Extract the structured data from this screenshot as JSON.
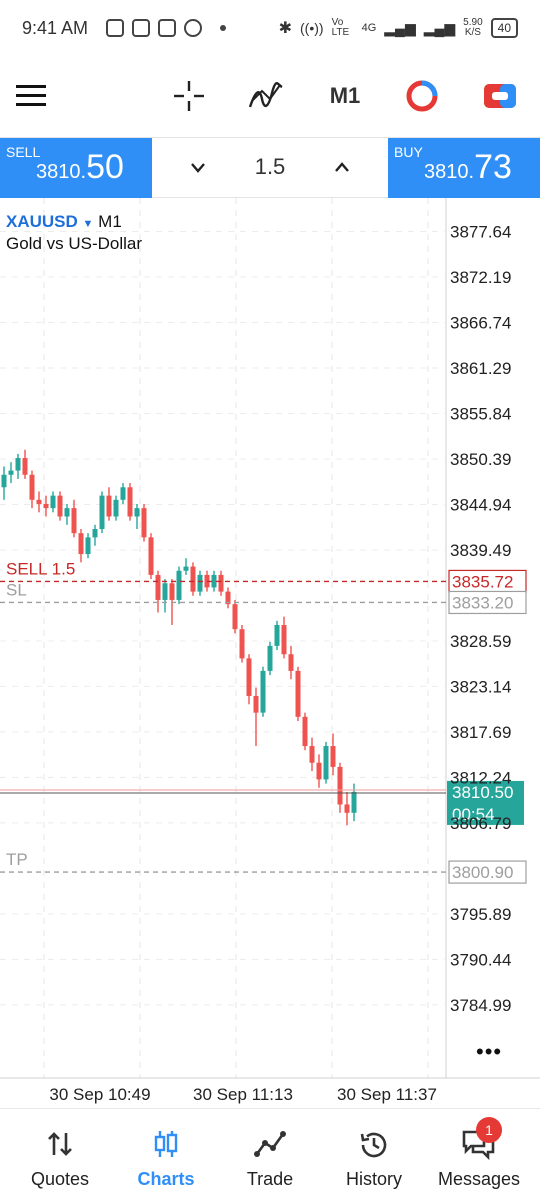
{
  "status": {
    "time": "9:41 AM",
    "net_speed": "5.90",
    "net_unit": "K/S",
    "battery": "40",
    "signal_label": "Vo LTE",
    "net_type": "4G"
  },
  "toolbar": {
    "menu_icon": "hamburger-icon",
    "crosshair_icon": "crosshair-icon",
    "indicators_icon": "indicators-icon",
    "timeframe": "M1",
    "theme_icon": "color-theme-icon",
    "trade_icon": "one-click-trade-icon"
  },
  "trade": {
    "sell_label": "SELL",
    "sell_price_main": "3810.",
    "sell_price_big": "50",
    "lot": "1.5",
    "buy_label": "BUY",
    "buy_price_main": "3810.",
    "buy_price_big": "73"
  },
  "chart_header": {
    "symbol": "XAUUSD",
    "timeframe": "M1",
    "description": "Gold vs US-Dollar"
  },
  "chart_data": {
    "type": "candlestick",
    "y_ticks": [
      "3877.64",
      "3872.19",
      "3866.74",
      "3861.29",
      "3855.84",
      "3850.39",
      "3844.94",
      "3839.49",
      "3835.72",
      "3833.20",
      "3828.59",
      "3823.14",
      "3817.69",
      "3812.24",
      "3806.79",
      "3800.90",
      "3795.89",
      "3790.44",
      "3784.99"
    ],
    "ylim": [
      3781.5,
      3879.5
    ],
    "x_ticks": [
      "30 Sep 10:49",
      "30 Sep 11:13",
      "30 Sep 11:37"
    ],
    "grid": true,
    "up_color": "#26a69a",
    "down_color": "#ef5350",
    "order_lines": [
      {
        "label": "SELL 1.5",
        "price": 3835.72,
        "price_label": "3835.72",
        "color": "#c62828"
      },
      {
        "label": "SL",
        "price": 3833.2,
        "price_label": "3833.20",
        "color": "#9e9e9e"
      },
      {
        "label": "TP",
        "price": 3800.9,
        "price_label": "3800.90",
        "color": "#9e9e9e"
      }
    ],
    "current": {
      "price": 3810.5,
      "price_label": "3810.50",
      "countdown": "00:54",
      "color": "#26a69a"
    },
    "candles": [
      [
        3847.0,
        3849.5,
        3845.5,
        3848.5
      ],
      [
        3848.5,
        3850.0,
        3847.5,
        3849.0
      ],
      [
        3849.0,
        3851.0,
        3848.0,
        3850.5
      ],
      [
        3850.5,
        3851.5,
        3848.0,
        3848.5
      ],
      [
        3848.5,
        3849.0,
        3844.5,
        3845.5
      ],
      [
        3845.5,
        3846.5,
        3844.0,
        3845.0
      ],
      [
        3845.0,
        3846.0,
        3843.5,
        3844.5
      ],
      [
        3844.5,
        3846.5,
        3844.0,
        3846.0
      ],
      [
        3846.0,
        3846.5,
        3843.0,
        3843.5
      ],
      [
        3843.5,
        3845.0,
        3842.5,
        3844.5
      ],
      [
        3844.5,
        3845.5,
        3841.0,
        3841.5
      ],
      [
        3841.5,
        3842.0,
        3838.0,
        3839.0
      ],
      [
        3839.0,
        3841.5,
        3838.5,
        3841.0
      ],
      [
        3841.0,
        3842.5,
        3840.0,
        3842.0
      ],
      [
        3842.0,
        3846.5,
        3841.5,
        3846.0
      ],
      [
        3846.0,
        3847.0,
        3843.0,
        3843.5
      ],
      [
        3843.5,
        3846.0,
        3843.0,
        3845.5
      ],
      [
        3845.5,
        3847.5,
        3845.0,
        3847.0
      ],
      [
        3847.0,
        3847.5,
        3843.0,
        3843.5
      ],
      [
        3843.5,
        3845.0,
        3842.0,
        3844.5
      ],
      [
        3844.5,
        3845.0,
        3840.5,
        3841.0
      ],
      [
        3841.0,
        3841.5,
        3836.0,
        3836.5
      ],
      [
        3836.5,
        3837.0,
        3832.0,
        3833.5
      ],
      [
        3833.5,
        3836.0,
        3832.0,
        3835.5
      ],
      [
        3835.5,
        3836.0,
        3830.5,
        3833.5
      ],
      [
        3833.5,
        3837.5,
        3833.0,
        3837.0
      ],
      [
        3837.0,
        3838.5,
        3836.5,
        3837.5
      ],
      [
        3837.5,
        3838.0,
        3834.0,
        3834.5
      ],
      [
        3834.5,
        3837.0,
        3834.0,
        3836.5
      ],
      [
        3836.5,
        3837.0,
        3834.5,
        3835.0
      ],
      [
        3835.0,
        3837.0,
        3834.5,
        3836.5
      ],
      [
        3836.5,
        3837.0,
        3834.0,
        3834.5
      ],
      [
        3834.5,
        3835.0,
        3832.5,
        3833.0
      ],
      [
        3833.0,
        3833.5,
        3829.5,
        3830.0
      ],
      [
        3830.0,
        3830.5,
        3826.0,
        3826.5
      ],
      [
        3826.5,
        3827.0,
        3821.0,
        3822.0
      ],
      [
        3822.0,
        3823.0,
        3816.0,
        3820.0
      ],
      [
        3820.0,
        3825.5,
        3819.5,
        3825.0
      ],
      [
        3825.0,
        3828.5,
        3824.5,
        3828.0
      ],
      [
        3828.0,
        3831.0,
        3827.5,
        3830.5
      ],
      [
        3830.5,
        3831.5,
        3826.5,
        3827.0
      ],
      [
        3827.0,
        3828.0,
        3824.0,
        3825.0
      ],
      [
        3825.0,
        3825.5,
        3819.0,
        3819.5
      ],
      [
        3819.5,
        3820.0,
        3815.5,
        3816.0
      ],
      [
        3816.0,
        3817.0,
        3813.0,
        3814.0
      ],
      [
        3814.0,
        3815.0,
        3811.0,
        3812.0
      ],
      [
        3812.0,
        3816.5,
        3811.5,
        3816.0
      ],
      [
        3816.0,
        3817.5,
        3812.5,
        3813.5
      ],
      [
        3813.5,
        3814.0,
        3808.0,
        3809.0
      ],
      [
        3809.0,
        3810.5,
        3806.5,
        3808.0
      ],
      [
        3808.0,
        3811.5,
        3807.0,
        3810.5
      ]
    ]
  },
  "nav": {
    "items": [
      {
        "label": "Quotes",
        "icon": "quotes-icon"
      },
      {
        "label": "Charts",
        "icon": "charts-icon"
      },
      {
        "label": "Trade",
        "icon": "trade-icon"
      },
      {
        "label": "History",
        "icon": "history-icon"
      },
      {
        "label": "Messages",
        "icon": "messages-icon"
      }
    ],
    "messages_badge": "1"
  }
}
